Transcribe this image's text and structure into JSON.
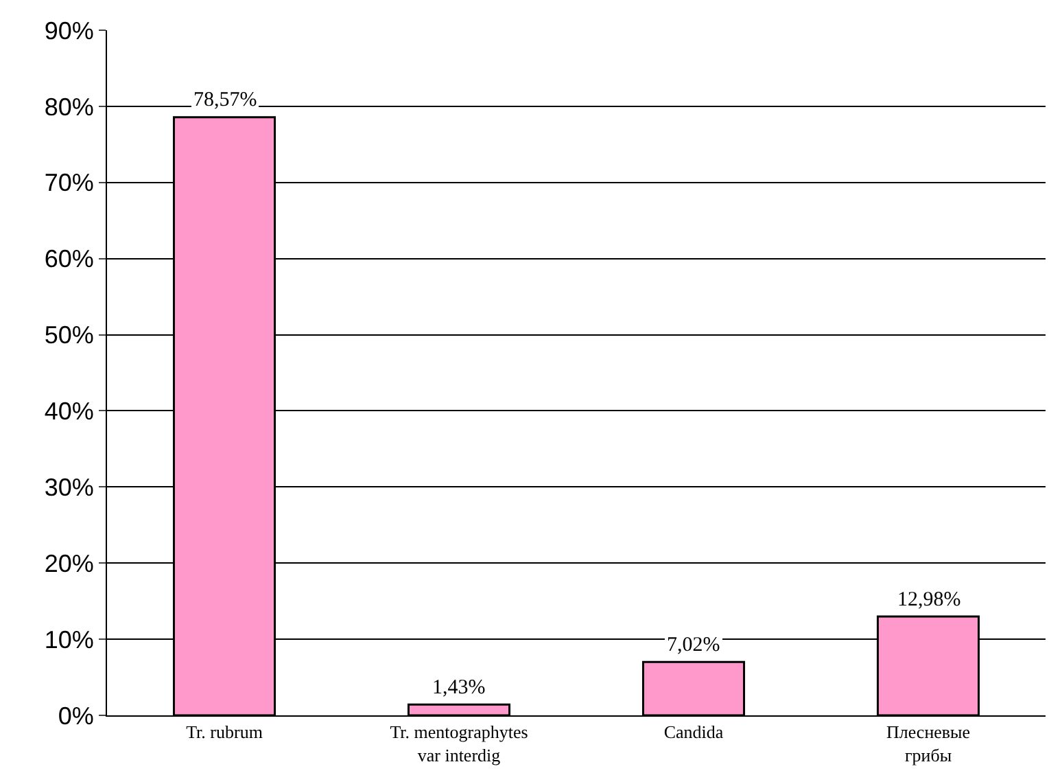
{
  "chart_data": {
    "type": "bar",
    "categories": [
      "Tr. rubrum",
      "Tr. mentographytes\nvar interdig",
      "Candida",
      "Плесневые\nгрибы"
    ],
    "values": [
      78.57,
      1.43,
      7.02,
      12.98
    ],
    "value_labels": [
      "78,57%",
      "1,43%",
      "7,02%",
      "12,98%"
    ],
    "color": "#ff99cc",
    "ylim": [
      0,
      90
    ],
    "yticks": [
      {
        "value": 0,
        "label": "0%"
      },
      {
        "value": 10,
        "label": "10%"
      },
      {
        "value": 20,
        "label": "20%"
      },
      {
        "value": 30,
        "label": "30%"
      },
      {
        "value": 40,
        "label": "40%"
      },
      {
        "value": 50,
        "label": "50%"
      },
      {
        "value": 60,
        "label": "60%"
      },
      {
        "value": 70,
        "label": "70%"
      },
      {
        "value": 80,
        "label": "80%"
      },
      {
        "value": 90,
        "label": "90%"
      }
    ],
    "grid": "y"
  }
}
